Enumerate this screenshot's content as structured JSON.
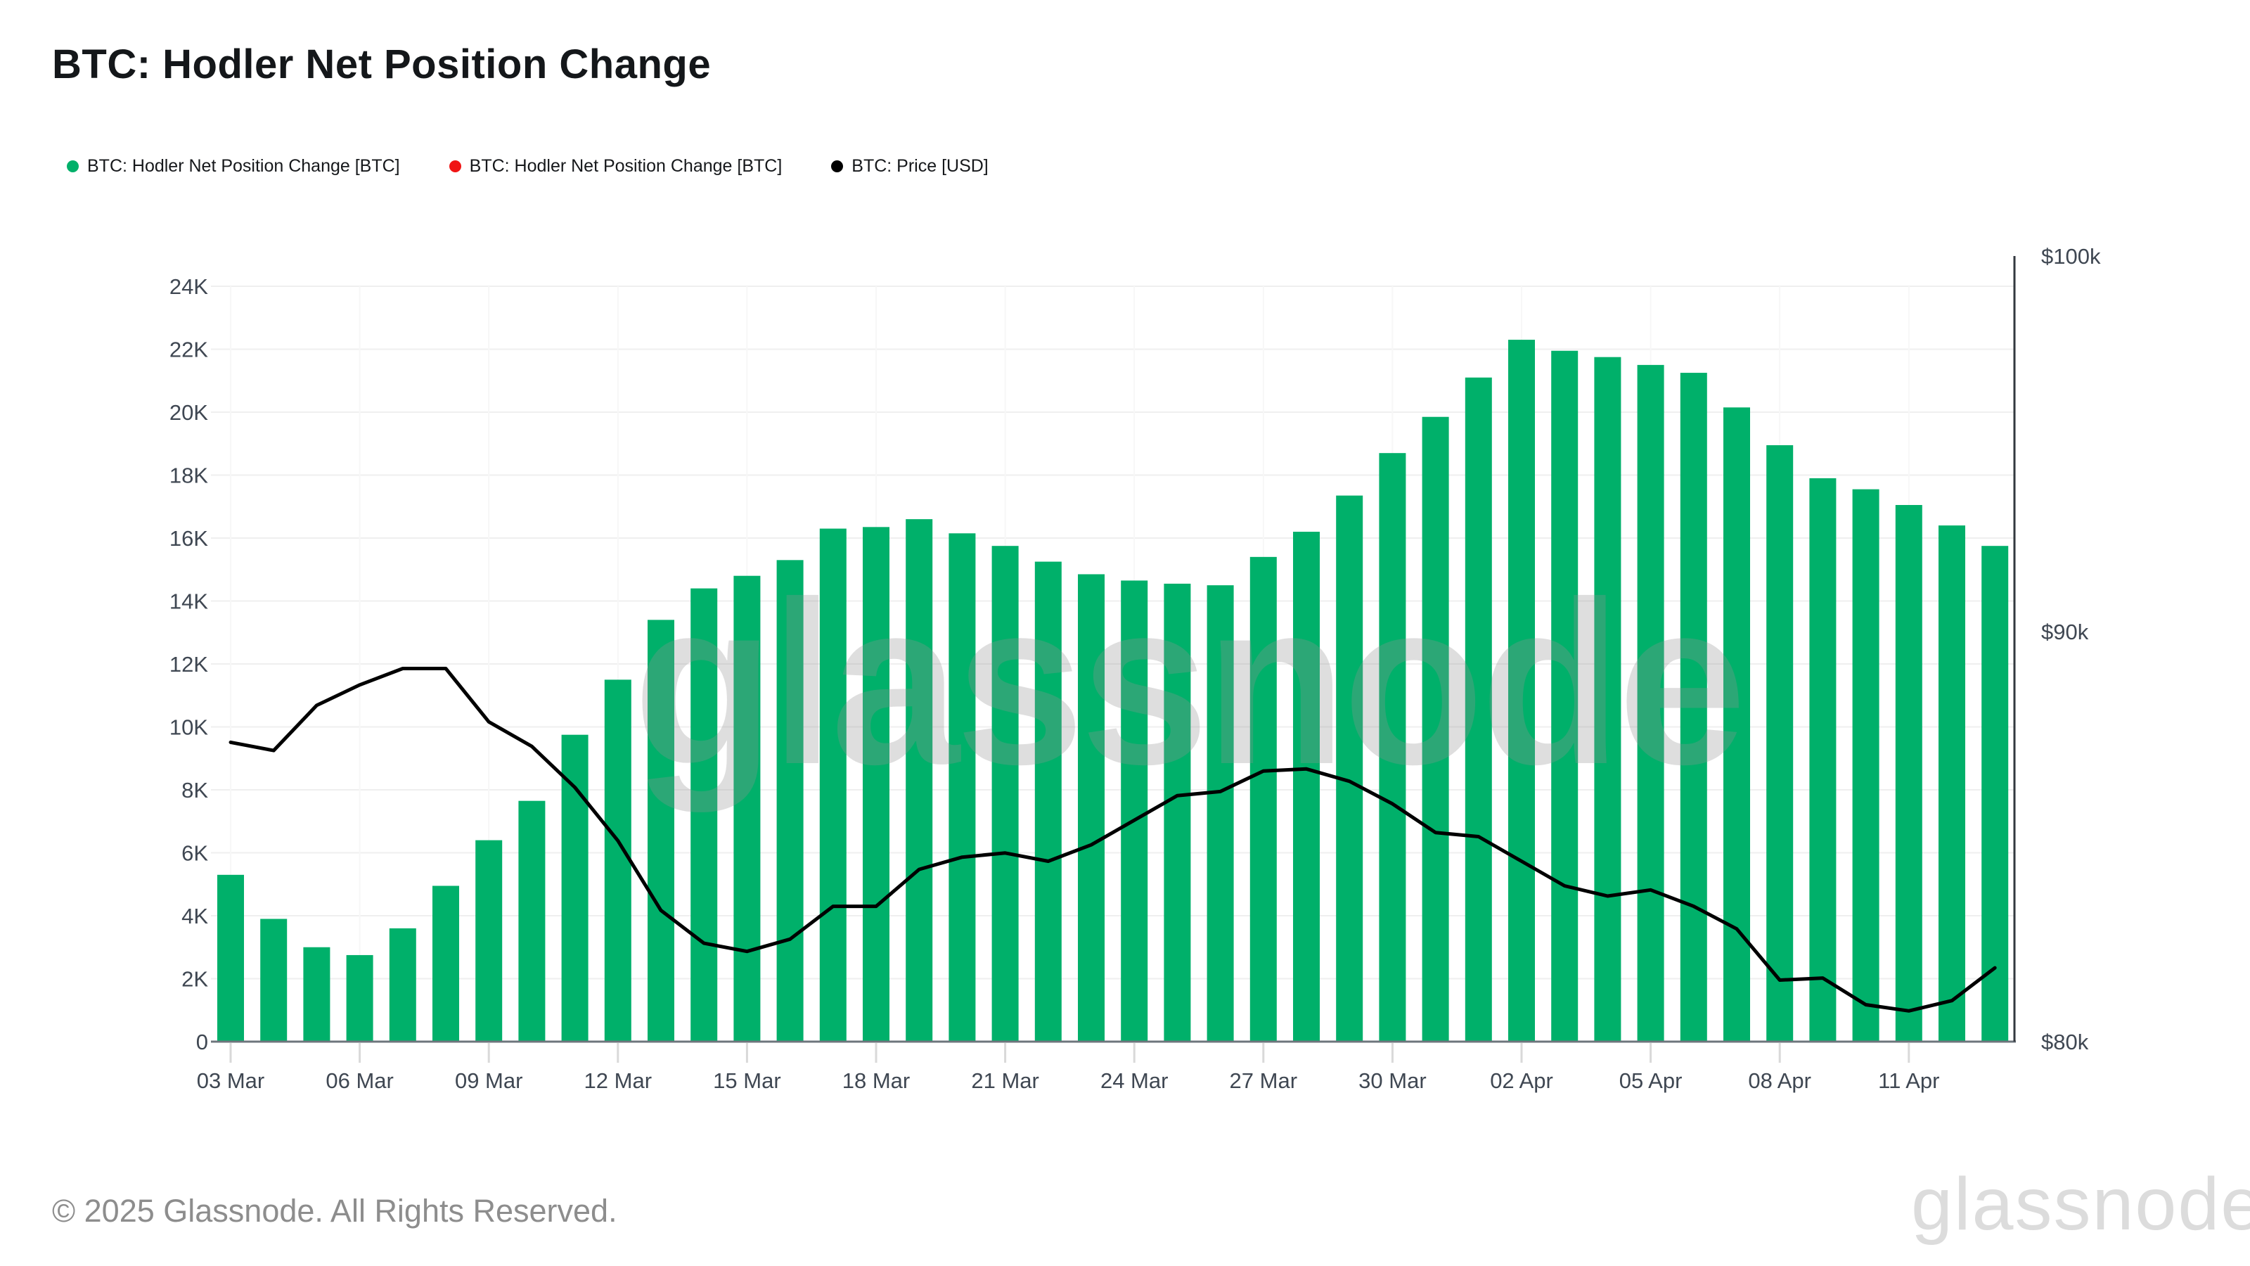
{
  "header": {
    "title": "BTC: Hodler Net Position Change"
  },
  "legend": [
    {
      "label": "BTC: Hodler Net Position Change [BTC]",
      "color": "#00B06A",
      "icon": "green-dot-icon"
    },
    {
      "label": "BTC: Hodler Net Position Change [BTC]",
      "color": "#F01414",
      "icon": "red-dot-icon"
    },
    {
      "label": "BTC: Price [USD]",
      "color": "#000000",
      "icon": "black-dot-icon"
    }
  ],
  "watermark": {
    "center": "glassnode"
  },
  "footer": {
    "copyright": "© 2025 Glassnode. All Rights Reserved.",
    "brand": "glassnode"
  },
  "chart_data": {
    "type": "bar",
    "title": "BTC: Hodler Net Position Change",
    "categories": [
      "03 Mar",
      "04 Mar",
      "05 Mar",
      "06 Mar",
      "07 Mar",
      "08 Mar",
      "09 Mar",
      "10 Mar",
      "11 Mar",
      "12 Mar",
      "13 Mar",
      "14 Mar",
      "15 Mar",
      "16 Mar",
      "17 Mar",
      "18 Mar",
      "19 Mar",
      "20 Mar",
      "21 Mar",
      "22 Mar",
      "23 Mar",
      "24 Mar",
      "25 Mar",
      "26 Mar",
      "27 Mar",
      "28 Mar",
      "29 Mar",
      "30 Mar",
      "31 Mar",
      "01 Apr",
      "02 Apr",
      "03 Apr",
      "04 Apr",
      "05 Apr",
      "06 Apr",
      "07 Apr",
      "08 Apr",
      "09 Apr",
      "10 Apr",
      "11 Apr",
      "12 Apr",
      "13 Apr"
    ],
    "x_tick_labels": [
      "03 Mar",
      "06 Mar",
      "09 Mar",
      "12 Mar",
      "15 Mar",
      "18 Mar",
      "21 Mar",
      "24 Mar",
      "27 Mar",
      "30 Mar",
      "02 Apr",
      "05 Apr",
      "08 Apr",
      "11 Apr"
    ],
    "series": [
      {
        "name": "BTC: Hodler Net Position Change [BTC]",
        "type": "bar",
        "color": "#00B06A",
        "axis": "left",
        "values": [
          5300,
          3900,
          3000,
          2750,
          3600,
          4950,
          6400,
          7650,
          9750,
          11500,
          13400,
          14400,
          14800,
          15300,
          16300,
          16350,
          16600,
          16150,
          15750,
          15250,
          14850,
          14650,
          14550,
          14500,
          15400,
          16200,
          17350,
          18700,
          19850,
          21100,
          22300,
          21950,
          21750,
          21500,
          21250,
          20150,
          18950,
          17900,
          17550,
          17050,
          16400,
          15750
        ]
      },
      {
        "name": "BTC: Price [USD]",
        "type": "line",
        "color": "#000000",
        "axis": "right",
        "values": [
          87300,
          87100,
          88200,
          88700,
          89100,
          89100,
          87800,
          87200,
          86200,
          84900,
          83200,
          82400,
          82200,
          82500,
          83300,
          83300,
          84200,
          84500,
          84600,
          84400,
          84800,
          85400,
          86000,
          86100,
          86600,
          86650,
          86350,
          85800,
          85100,
          85000,
          84400,
          83800,
          83550,
          83700,
          83300,
          82750,
          81500,
          81550,
          80900,
          80750,
          81000,
          81800
        ]
      }
    ],
    "left_axis": {
      "tick_labels": [
        "0",
        "2K",
        "4K",
        "6K",
        "8K",
        "10K",
        "12K",
        "14K",
        "16K",
        "18K",
        "20K",
        "22K",
        "24K"
      ],
      "min": 0,
      "max": 24000,
      "gridline_step": 2000,
      "grid": true
    },
    "right_axis": {
      "tick_labels": [
        "$80k",
        "$90k",
        "$100k"
      ],
      "min": 80000,
      "max": 100000
    },
    "legend_position": "top-left"
  }
}
